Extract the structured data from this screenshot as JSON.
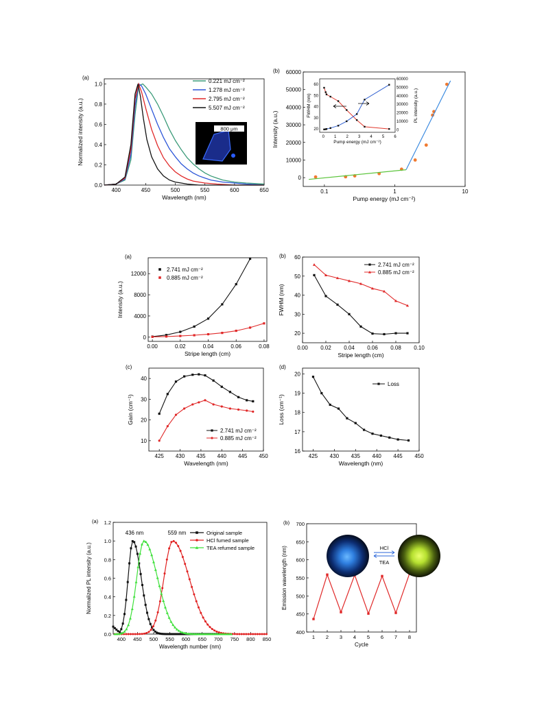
{
  "chart_data": [
    {
      "id": "fig1a",
      "panel": "(a)",
      "type": "line",
      "xlabel": "Wavelength (nm)",
      "ylabel": "Normalized intensity (a.u.)",
      "xlim": [
        380,
        650
      ],
      "ylim": [
        0,
        1.05
      ],
      "xticks": [
        400,
        450,
        500,
        550,
        600,
        650
      ],
      "yticks": [
        0.0,
        0.2,
        0.4,
        0.6,
        0.8,
        1.0
      ],
      "legend_position": "top-right",
      "scalebar_label": "800 μm",
      "series": [
        {
          "name": "0.221 mJ cm⁻²",
          "color": "#3a9a78",
          "x": [
            380,
            400,
            415,
            425,
            432,
            438,
            445,
            450,
            460,
            470,
            480,
            490,
            500,
            510,
            520,
            530,
            540,
            550,
            560,
            570,
            580,
            590,
            600,
            620,
            650
          ],
          "y": [
            0,
            0.01,
            0.05,
            0.25,
            0.7,
            0.98,
            1.0,
            0.97,
            0.9,
            0.8,
            0.68,
            0.55,
            0.44,
            0.35,
            0.27,
            0.21,
            0.16,
            0.12,
            0.09,
            0.07,
            0.05,
            0.04,
            0.03,
            0.02,
            0.01
          ]
        },
        {
          "name": "1.278 mJ cm⁻²",
          "color": "#2b55d8",
          "x": [
            380,
            400,
            415,
            425,
            432,
            438,
            443,
            450,
            460,
            470,
            480,
            490,
            500,
            510,
            520,
            530,
            540,
            550,
            560,
            570,
            580,
            600,
            620,
            650
          ],
          "y": [
            0,
            0.01,
            0.06,
            0.3,
            0.78,
            1.0,
            0.98,
            0.9,
            0.75,
            0.6,
            0.47,
            0.36,
            0.28,
            0.21,
            0.16,
            0.12,
            0.09,
            0.07,
            0.05,
            0.04,
            0.03,
            0.02,
            0.01,
            0.0
          ]
        },
        {
          "name": "2.795 mJ cm⁻²",
          "color": "#e02828",
          "x": [
            380,
            400,
            415,
            425,
            432,
            438,
            443,
            450,
            460,
            470,
            480,
            490,
            500,
            510,
            520,
            530,
            540,
            550,
            570,
            600,
            650
          ],
          "y": [
            0,
            0.01,
            0.07,
            0.35,
            0.85,
            1.0,
            0.92,
            0.76,
            0.55,
            0.39,
            0.27,
            0.19,
            0.13,
            0.09,
            0.06,
            0.04,
            0.03,
            0.02,
            0.01,
            0.0,
            0.0
          ]
        },
        {
          "name": "5.507 mJ cm⁻²",
          "color": "#111111",
          "x": [
            380,
            400,
            415,
            425,
            432,
            437,
            441,
            446,
            452,
            460,
            470,
            480,
            490,
            500,
            510,
            520,
            540,
            570,
            650
          ],
          "y": [
            0,
            0.01,
            0.08,
            0.4,
            0.9,
            1.0,
            0.88,
            0.66,
            0.45,
            0.28,
            0.16,
            0.09,
            0.05,
            0.03,
            0.02,
            0.01,
            0.0,
            0.0,
            0.0
          ]
        }
      ]
    },
    {
      "id": "fig1b",
      "panel": "(b)",
      "type": "scatter",
      "xlabel": "Pump energy (mJ cm⁻²)",
      "ylabel": "Intensity (a.u.)",
      "xscale": "log",
      "xlim": [
        0.05,
        10
      ],
      "ylim": [
        -5000,
        60000
      ],
      "xticks": [
        0.1,
        1,
        10
      ],
      "xticklabels": [
        "0.1",
        "1",
        "10"
      ],
      "yticks": [
        0,
        10000,
        20000,
        30000,
        40000,
        50000,
        60000
      ],
      "series": [
        {
          "name": "",
          "color": "#f07a30",
          "marker": "circle",
          "x": [
            0.075,
            0.2,
            0.27,
            0.6,
            1.25,
            1.95,
            2.8,
            3.45,
            3.6,
            5.5
          ],
          "y": [
            400,
            500,
            1000,
            2300,
            4800,
            10000,
            18500,
            35500,
            37500,
            53000
          ]
        },
        {
          "name": "",
          "color": "#5ac43a",
          "marker": "none",
          "x": [
            0.06,
            1.45
          ],
          "y": [
            -1000,
            4500
          ]
        },
        {
          "name": "",
          "color": "#3a8ae0",
          "marker": "none",
          "x": [
            1.45,
            6.2
          ],
          "y": [
            4500,
            55000
          ]
        }
      ],
      "inset": {
        "xlabel": "Pump energy (mJ cm⁻²)",
        "ylabel_left": "FWHM (nm)",
        "ylabel_right": "PL intensity (a.u.)",
        "xlim": [
          -0.3,
          6
        ],
        "ylim_left": [
          17,
          65
        ],
        "ylim_right": [
          -3000,
          60000
        ],
        "xticks": [
          0,
          1,
          2,
          3,
          4,
          5,
          6
        ],
        "yticks_left": [
          20,
          30,
          40,
          50,
          60
        ],
        "yticks_right": [
          0,
          10000,
          20000,
          30000,
          40000,
          50000,
          60000
        ],
        "series": [
          {
            "name": "FWHM",
            "color": "#e0382c",
            "axis": "left",
            "x": [
              0.07,
              0.2,
              0.27,
              0.6,
              1.25,
              1.95,
              2.8,
              3.45,
              5.5
            ],
            "y": [
              57,
              53,
              51,
              49,
              45,
              37,
              28,
              22,
              20
            ]
          },
          {
            "name": "PL intensity",
            "color": "#2f5fd0",
            "axis": "right",
            "x": [
              0.07,
              0.2,
              0.27,
              0.6,
              1.25,
              1.95,
              2.8,
              3.45,
              5.5
            ],
            "y": [
              400,
              600,
              900,
              2000,
              4800,
              10000,
              18500,
              35500,
              53000
            ]
          }
        ]
      }
    },
    {
      "id": "fig2a",
      "panel": "(a)",
      "type": "scatter",
      "xlabel": "Stripe length (cm)",
      "ylabel": "Intensity (a.u.)",
      "xlim": [
        -0.003,
        0.082
      ],
      "ylim": [
        -800,
        15000
      ],
      "xticks": [
        0.0,
        0.02,
        0.04,
        0.06,
        0.08
      ],
      "yticks": [
        0,
        4000,
        8000,
        12000
      ],
      "legend_position": "top-left",
      "series": [
        {
          "name": "2.741 mJ cm⁻²",
          "color": "#111111",
          "x": [
            0.0,
            0.01,
            0.02,
            0.03,
            0.04,
            0.05,
            0.06,
            0.07
          ],
          "y": [
            100,
            400,
            1000,
            2000,
            3500,
            6200,
            10000,
            14800
          ]
        },
        {
          "name": "0.885 mJ cm⁻²",
          "color": "#e02828",
          "x": [
            0.0,
            0.01,
            0.02,
            0.03,
            0.04,
            0.05,
            0.06,
            0.07,
            0.08
          ],
          "y": [
            50,
            120,
            220,
            360,
            550,
            800,
            1200,
            1800,
            2600
          ]
        }
      ]
    },
    {
      "id": "fig2b",
      "panel": "(b)",
      "type": "line",
      "xlabel": "Stripe length (cm)",
      "ylabel": "FWHM (nm)",
      "xlim": [
        0,
        0.1
      ],
      "ylim": [
        15,
        60
      ],
      "xticks": [
        0.0,
        0.02,
        0.04,
        0.06,
        0.08,
        0.1
      ],
      "yticks": [
        20,
        30,
        40,
        50,
        60
      ],
      "legend_position": "top-right",
      "series": [
        {
          "name": "2.741 mJ cm⁻²",
          "color": "#111111",
          "x": [
            0.01,
            0.02,
            0.03,
            0.04,
            0.05,
            0.06,
            0.07,
            0.08,
            0.09
          ],
          "y": [
            50.5,
            39.5,
            35,
            30,
            23.5,
            19.8,
            19.5,
            20,
            20
          ]
        },
        {
          "name": "0.885 mJ cm⁻²",
          "color": "#e02828",
          "x": [
            0.01,
            0.02,
            0.03,
            0.04,
            0.05,
            0.06,
            0.07,
            0.08,
            0.09
          ],
          "y": [
            56,
            50.5,
            49,
            47.5,
            46,
            43.5,
            42,
            37,
            34.5
          ]
        }
      ]
    },
    {
      "id": "fig2c",
      "panel": "(c)",
      "type": "line",
      "xlabel": "Wavelength (nm)",
      "ylabel": "Gain (cm⁻¹)",
      "xlim": [
        422.5,
        450
      ],
      "ylim": [
        5,
        45
      ],
      "xticks": [
        425,
        430,
        435,
        440,
        445,
        450
      ],
      "yticks": [
        10,
        20,
        30,
        40
      ],
      "legend_position": "bottom-right",
      "series": [
        {
          "name": "2.741 mJ cm⁻²",
          "color": "#111111",
          "x": [
            425,
            427,
            429,
            431,
            433,
            434.5,
            436,
            438,
            440,
            442,
            444,
            446,
            447.5
          ],
          "y": [
            23,
            32.5,
            38.5,
            41,
            41.8,
            42,
            41.5,
            39,
            36,
            33.5,
            31,
            29.5,
            29
          ]
        },
        {
          "name": "0.885 mJ cm⁻²",
          "color": "#e02828",
          "x": [
            425,
            427,
            429,
            431,
            433,
            434.5,
            436,
            438,
            440,
            442,
            444,
            446,
            447.5
          ],
          "y": [
            10,
            17,
            22.5,
            25.5,
            27.5,
            28.5,
            29.5,
            27.5,
            26.5,
            25.5,
            25,
            24.5,
            24
          ]
        }
      ]
    },
    {
      "id": "fig2d",
      "panel": "(d)",
      "type": "line",
      "xlabel": "Wavelength (nm)",
      "ylabel": "Loss (cm⁻¹)",
      "xlim": [
        422.5,
        450
      ],
      "ylim": [
        16,
        20.3
      ],
      "xticks": [
        425,
        430,
        435,
        440,
        445,
        450
      ],
      "yticks": [
        16,
        17,
        18,
        19,
        20
      ],
      "legend_position": "top-right",
      "series": [
        {
          "name": "Loss",
          "color": "#111111",
          "x": [
            425,
            427,
            429,
            431,
            433,
            435,
            437,
            439,
            441,
            443,
            445,
            447.5
          ],
          "y": [
            19.85,
            19.0,
            18.4,
            18.2,
            17.7,
            17.45,
            17.1,
            16.9,
            16.8,
            16.7,
            16.6,
            16.55
          ]
        }
      ]
    },
    {
      "id": "fig3a",
      "panel": "(a)",
      "type": "line",
      "xlabel": "Wavelength number (nm)",
      "ylabel": "Normalized PL intensity (a.u.)",
      "xlim": [
        375,
        850
      ],
      "ylim": [
        0,
        1.2
      ],
      "xticks": [
        400,
        450,
        500,
        550,
        600,
        650,
        700,
        750,
        800,
        850
      ],
      "yticks": [
        0.0,
        0.2,
        0.4,
        0.6,
        0.8,
        1.0,
        1.2
      ],
      "legend_position": "top-right",
      "annotations": [
        "436 nm",
        "559 nm"
      ],
      "series": [
        {
          "name": "Original sample",
          "color": "#111111",
          "peak": 436,
          "width_left": 22,
          "width_right": 38,
          "range": [
            375,
            700
          ],
          "step": 5,
          "baseline_left": 0.08
        },
        {
          "name": "HCl fumed sample",
          "color": "#e02020",
          "peak": 559,
          "width_left": 40,
          "width_right": 75,
          "range": [
            380,
            850
          ],
          "step": 7
        },
        {
          "name": "TEA refumed sample",
          "color": "#3ee03a",
          "peak": 470,
          "width_left": 33,
          "width_right": 62,
          "range": [
            380,
            740
          ],
          "step": 6
        }
      ]
    },
    {
      "id": "fig3b",
      "panel": "(b)",
      "type": "line",
      "xlabel": "Cycle",
      "ylabel": "Emission wavelength (nm)",
      "xlim": [
        0.5,
        8.5
      ],
      "ylim": [
        400,
        700
      ],
      "xticks": [
        1,
        2,
        3,
        4,
        5,
        6,
        7,
        8
      ],
      "yticks": [
        400,
        450,
        500,
        550,
        600,
        650,
        700
      ],
      "arrow_top_label": "HCl",
      "arrow_bottom_label": "TEA",
      "series": [
        {
          "name": "",
          "color": "#e02828",
          "x": [
            1,
            2,
            3,
            4,
            5,
            6,
            7,
            8
          ],
          "y": [
            436,
            559,
            455,
            558,
            451,
            555,
            453,
            562
          ]
        }
      ]
    }
  ]
}
